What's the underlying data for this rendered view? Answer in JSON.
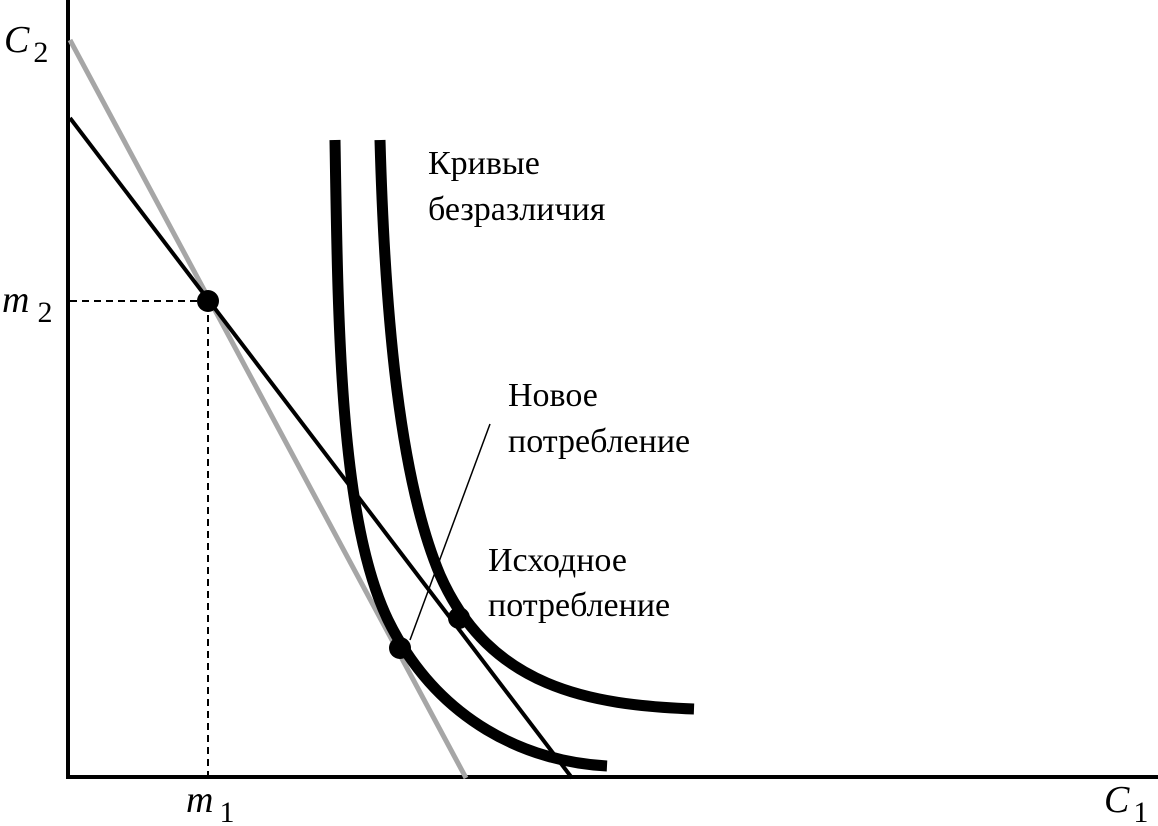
{
  "axes": {
    "x_label": "C",
    "x_subscript": "1",
    "y_label": "C",
    "y_subscript": "2"
  },
  "ticks": {
    "m1_letter": "m",
    "m1_subscript": "1",
    "m2_letter": "m",
    "m2_subscript": "2"
  },
  "annotations": {
    "indifference_line1": "Кривые",
    "indifference_line2": "безразличия",
    "new_line1": "Новое",
    "new_line2": "потребление",
    "initial_line1": "Исходное",
    "initial_line2": "потребление"
  },
  "colors": {
    "ink": "#000000",
    "gray_budget": "#a6a6a6",
    "background": "#ffffff"
  }
}
